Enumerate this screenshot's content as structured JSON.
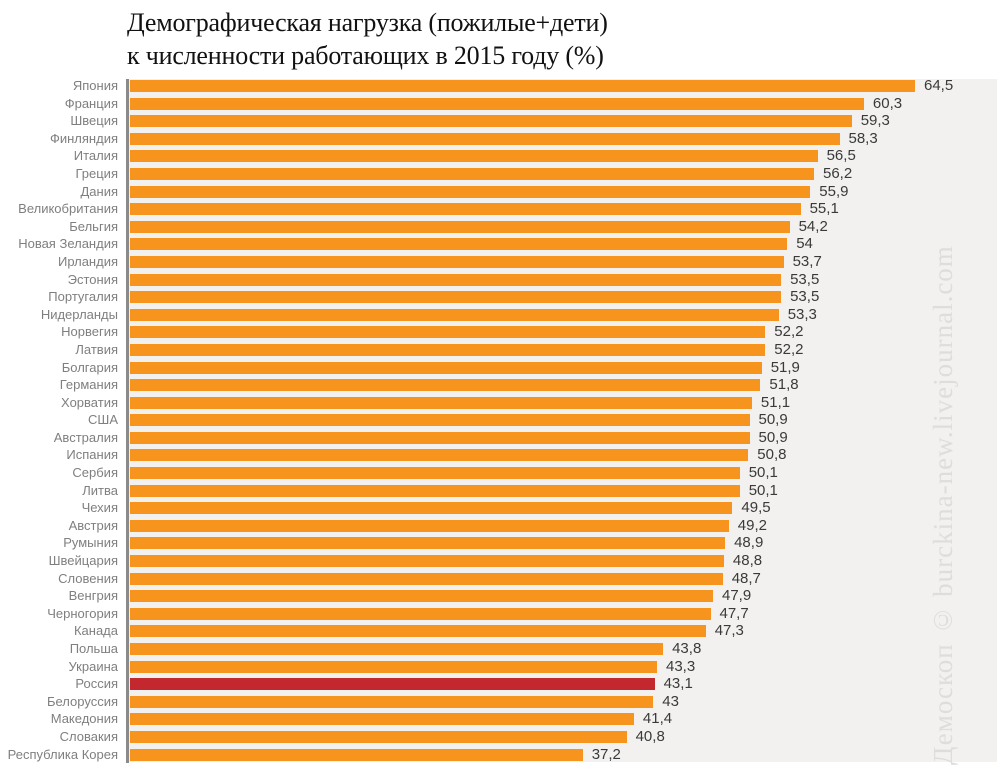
{
  "title": {
    "line1": "Демографическая нагрузка (пожилые+дети)",
    "line2": "к численности работающих в 2015 году (%)"
  },
  "watermark": "Демоскоп © burckina-new.livejournal.com",
  "colors": {
    "bar": "#f7941e",
    "highlight": "#c2282e",
    "plot_bg": "#f2f1ef",
    "axis": "#8a8a8a",
    "country_label": "#7f7f7f",
    "value_label": "#3a3a3a",
    "watermark_text": "#dedddb"
  },
  "chart_data": {
    "type": "bar",
    "orientation": "horizontal",
    "title": "Демографическая нагрузка (пожилые+дети) к численности работающих в 2015 году (%)",
    "xlabel": "",
    "ylabel": "",
    "xlim": [
      0,
      71
    ],
    "grid": false,
    "legend": false,
    "value_decimal_separator": ",",
    "highlight_category": "Россия",
    "highlight_index": 34,
    "categories": [
      "Япония",
      "Франция",
      "Швеция",
      "Финляндия",
      "Италия",
      "Греция",
      "Дания",
      "Великобритания",
      "Бельгия",
      "Новая Зеландия",
      "Ирландия",
      "Эстония",
      "Португалия",
      "Нидерланды",
      "Норвегия",
      "Латвия",
      "Болгария",
      "Германия",
      "Хорватия",
      "США",
      "Австралия",
      "Испания",
      "Сербия",
      "Литва",
      "Чехия",
      "Австрия",
      "Румыния",
      "Швейцария",
      "Словения",
      "Венгрия",
      "Черногория",
      "Канада",
      "Польша",
      "Украина",
      "Россия",
      "Белоруссия",
      "Македония",
      "Словакия",
      "Республика Корея"
    ],
    "values": [
      64.5,
      60.3,
      59.3,
      58.3,
      56.5,
      56.2,
      55.9,
      55.1,
      54.2,
      54,
      53.7,
      53.5,
      53.5,
      53.3,
      52.2,
      52.2,
      51.9,
      51.8,
      51.1,
      50.9,
      50.9,
      50.8,
      50.1,
      50.1,
      49.5,
      49.2,
      48.9,
      48.8,
      48.7,
      47.9,
      47.7,
      47.3,
      43.8,
      43.3,
      43.1,
      43,
      41.4,
      40.8,
      37.2
    ],
    "display_values": [
      "64,5",
      "60,3",
      "59,3",
      "58,3",
      "56,5",
      "56,2",
      "55,9",
      "55,1",
      "54,2",
      "54",
      "53,7",
      "53,5",
      "53,5",
      "53,3",
      "52,2",
      "52,2",
      "51,9",
      "51,8",
      "51,1",
      "50,9",
      "50,9",
      "50,8",
      "50,1",
      "50,1",
      "49,5",
      "49,2",
      "48,9",
      "48,8",
      "48,7",
      "47,9",
      "47,7",
      "47,3",
      "43,8",
      "43,3",
      "43,1",
      "43",
      "41,4",
      "40,8",
      "37,2"
    ]
  }
}
